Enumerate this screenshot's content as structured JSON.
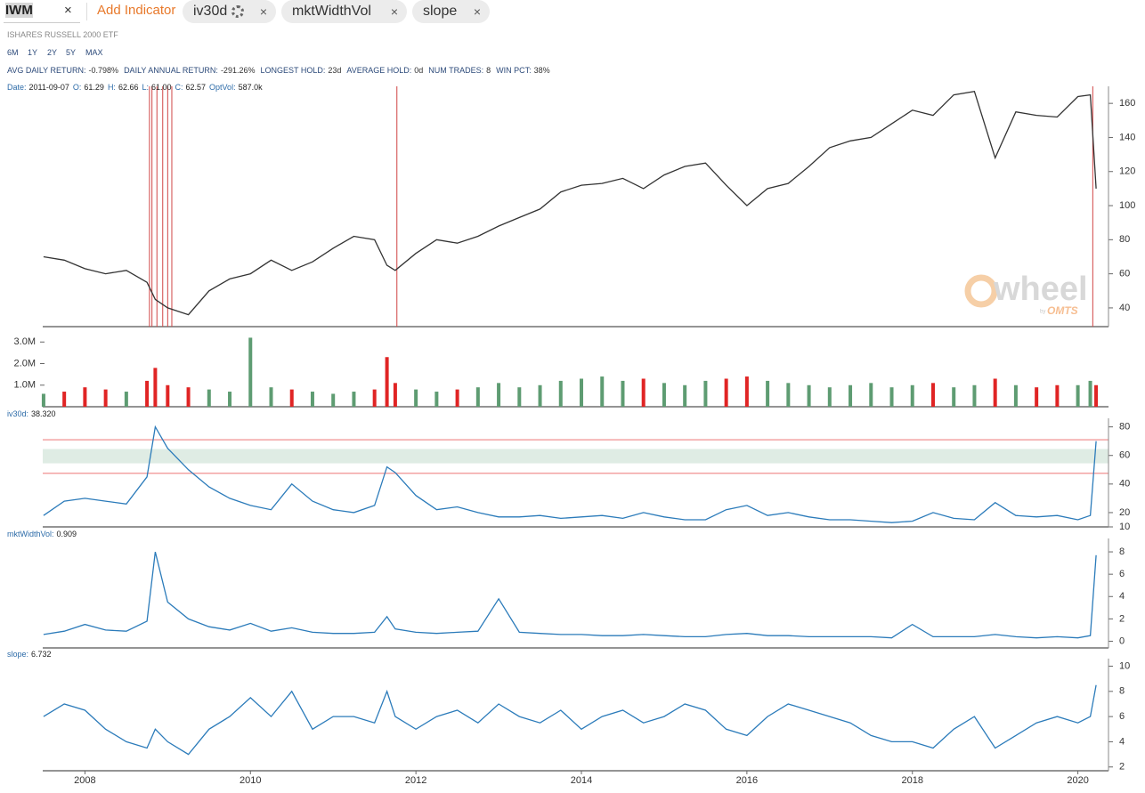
{
  "header": {
    "ticker": "IWM",
    "clear": "×",
    "add_indicator": "Add Indicator",
    "indicators": [
      "iv30d",
      "mktWidthVol",
      "slope"
    ],
    "remove": "×"
  },
  "name": "ISHARES RUSSELL 2000 ETF",
  "ranges": [
    "6M",
    "1Y",
    "2Y",
    "5Y",
    "MAX"
  ],
  "stats": [
    {
      "label": "AVG DAILY RETURN:",
      "value": "-0.798%"
    },
    {
      "label": "DAILY ANNUAL RETURN:",
      "value": "-291.26%"
    },
    {
      "label": "LONGEST HOLD:",
      "value": "23d"
    },
    {
      "label": "AVERAGE HOLD:",
      "value": "0d"
    },
    {
      "label": "NUM TRADES:",
      "value": "8"
    },
    {
      "label": "WIN PCT:",
      "value": "38%"
    }
  ],
  "quote": [
    {
      "label": "Date:",
      "value": "2011-09-07"
    },
    {
      "label": "O:",
      "value": "61.29"
    },
    {
      "label": "H:",
      "value": "62.66"
    },
    {
      "label": "L:",
      "value": "61.00"
    },
    {
      "label": "C:",
      "value": "62.57"
    },
    {
      "label": "OptVol:",
      "value": "587.0k"
    }
  ],
  "watermark": {
    "text": "wheel",
    "by": "by",
    "brand": "OMTS"
  },
  "timeline": {
    "x": [
      2007.5,
      2007.75,
      2008,
      2008.25,
      2008.5,
      2008.75,
      2008.85,
      2009,
      2009.25,
      2009.5,
      2009.75,
      2010,
      2010.25,
      2010.5,
      2010.75,
      2011,
      2011.25,
      2011.5,
      2011.65,
      2011.75,
      2012,
      2012.25,
      2012.5,
      2012.75,
      2013,
      2013.25,
      2013.5,
      2013.75,
      2014,
      2014.25,
      2014.5,
      2014.75,
      2015,
      2015.25,
      2015.5,
      2015.75,
      2016,
      2016.25,
      2016.5,
      2016.75,
      2017,
      2017.25,
      2017.5,
      2017.75,
      2018,
      2018.25,
      2018.5,
      2018.75,
      2019,
      2019.25,
      2019.5,
      2019.75,
      2020,
      2020.15,
      2020.22
    ],
    "xlim": [
      2007.49,
      2020.37
    ],
    "xticks": [
      2008,
      2010,
      2012,
      2014,
      2016,
      2018,
      2020
    ]
  },
  "chart_data": [
    {
      "type": "line",
      "color": "#333333",
      "values": [
        70,
        68,
        63,
        60,
        62,
        55,
        45,
        40,
        36,
        50,
        57,
        60,
        68,
        62,
        67,
        75,
        82,
        80,
        65,
        62,
        72,
        80,
        78,
        82,
        88,
        93,
        98,
        108,
        112,
        113,
        116,
        110,
        118,
        123,
        125,
        112,
        100,
        110,
        113,
        123,
        134,
        138,
        140,
        148,
        156,
        153,
        165,
        167,
        128,
        155,
        153,
        152,
        164,
        165,
        110
      ],
      "ylim": [
        29,
        170
      ],
      "yticks": [
        40,
        60,
        80,
        100,
        120,
        140,
        160
      ],
      "trades": [
        2008.78,
        2008.81,
        2008.87,
        2008.94,
        2009.0,
        2009.05,
        2011.77,
        2020.18
      ],
      "trade_color": "#d04545"
    },
    {
      "type": "bar",
      "up_color": "#5e9c72",
      "down_color": "#e02424",
      "values": [
        600000,
        700000,
        900000,
        800000,
        700000,
        1200000,
        1800000,
        1000000,
        900000,
        800000,
        700000,
        3200000,
        900000,
        800000,
        700000,
        600000,
        700000,
        800000,
        2300000,
        1100000,
        800000,
        700000,
        800000,
        900000,
        1100000,
        900000,
        1000000,
        1200000,
        1300000,
        1400000,
        1200000,
        1300000,
        1100000,
        1000000,
        1200000,
        1300000,
        1400000,
        1200000,
        1100000,
        1000000,
        900000,
        1000000,
        1100000,
        900000,
        1000000,
        1100000,
        900000,
        1000000,
        1300000,
        1000000,
        900000,
        1000000,
        1000000,
        1200000,
        1000000
      ],
      "ylim": [
        0,
        3300000
      ],
      "yticks": [
        {
          "value": 1000000,
          "label": "1.0M"
        },
        {
          "value": 2000000,
          "label": "2.0M"
        },
        {
          "value": 3000000,
          "label": "3.0M"
        }
      ]
    },
    {
      "type": "line",
      "label": "iv30d:",
      "current": "38.320",
      "color": "#2b7bba",
      "values": [
        18,
        28,
        30,
        28,
        26,
        45,
        80,
        65,
        50,
        38,
        30,
        25,
        22,
        40,
        28,
        22,
        20,
        25,
        52,
        48,
        32,
        22,
        24,
        20,
        17,
        17,
        18,
        16,
        17,
        18,
        16,
        20,
        17,
        15,
        15,
        22,
        25,
        18,
        20,
        17,
        15,
        15,
        14,
        13,
        14,
        20,
        16,
        15,
        27,
        18,
        17,
        18,
        15,
        18,
        70
      ],
      "ylim": [
        10,
        86
      ],
      "yticks": [
        10,
        20,
        40,
        60,
        80
      ],
      "ref_lines": [
        71,
        47.5
      ],
      "ref_color": "#f3a3a3",
      "band": [
        54.5,
        64.5
      ],
      "band_color": "#dfece4"
    },
    {
      "type": "line",
      "label": "mktWidthVol:",
      "current": "0.909",
      "color": "#2b7bba",
      "values": [
        0.6,
        0.9,
        1.5,
        1.0,
        0.9,
        1.8,
        8.0,
        3.5,
        2.0,
        1.3,
        1.0,
        1.6,
        0.9,
        1.2,
        0.8,
        0.7,
        0.7,
        0.8,
        2.2,
        1.1,
        0.8,
        0.7,
        0.8,
        0.9,
        3.8,
        0.8,
        0.7,
        0.6,
        0.6,
        0.5,
        0.5,
        0.6,
        0.5,
        0.4,
        0.4,
        0.6,
        0.7,
        0.5,
        0.5,
        0.4,
        0.4,
        0.4,
        0.4,
        0.3,
        1.5,
        0.4,
        0.4,
        0.4,
        0.6,
        0.4,
        0.3,
        0.4,
        0.3,
        0.5,
        7.7
      ],
      "ylim": [
        -0.6,
        9.2
      ],
      "yticks": [
        0,
        2,
        4,
        6,
        8
      ]
    },
    {
      "type": "line",
      "label": "slope:",
      "current": "6.732",
      "color": "#2b7bba",
      "values": [
        6,
        7,
        6.5,
        5,
        4,
        3.5,
        5,
        4,
        3,
        5,
        6,
        7.5,
        6,
        8,
        5,
        6,
        6,
        5.5,
        8,
        6,
        5,
        6,
        6.5,
        5.5,
        7,
        6,
        5.5,
        6.5,
        5,
        6,
        6.5,
        5.5,
        6,
        7,
        6.5,
        5,
        4.5,
        6,
        7,
        6.5,
        6,
        5.5,
        4.5,
        4,
        4,
        3.5,
        5,
        6,
        3.5,
        4.5,
        5.5,
        6,
        5.5,
        6,
        8.5
      ],
      "ylim": [
        1.7,
        10.6
      ],
      "yticks": [
        2,
        4,
        6,
        8,
        10
      ]
    }
  ]
}
